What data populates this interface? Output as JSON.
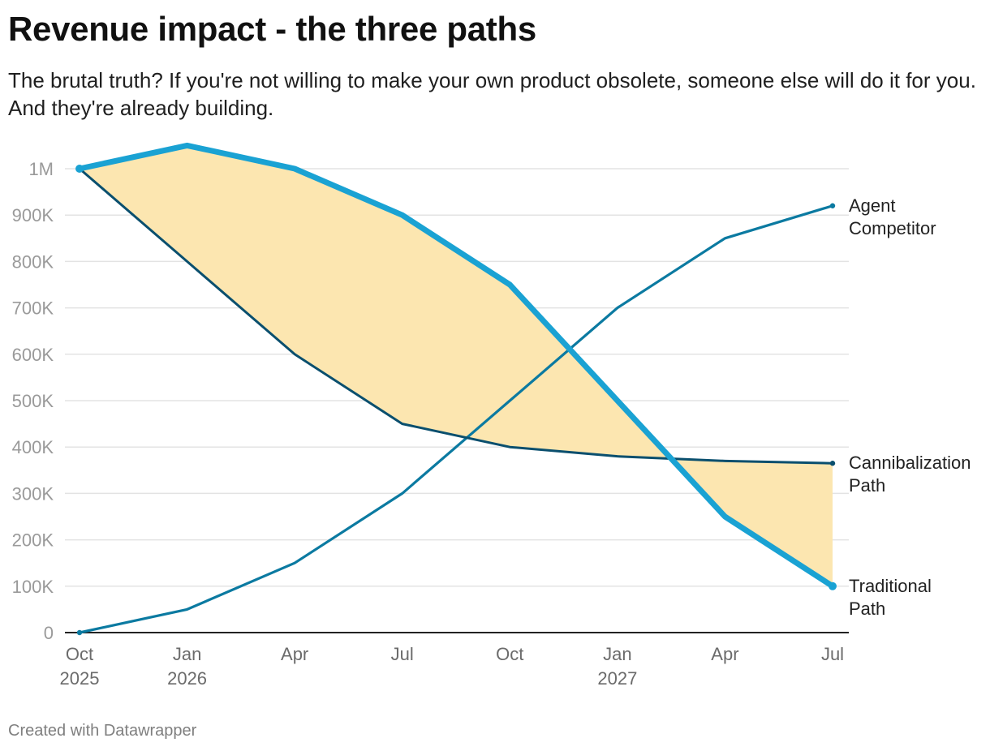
{
  "title": "Revenue impact - the three paths",
  "subtitle": "The brutal truth? If you're not willing to make your own product obsolete, someone else will do it for you. And they're already building.",
  "footer": "Created with Datawrapper",
  "chart_data": {
    "type": "line",
    "title": "Revenue impact - the three paths",
    "xlabel": "",
    "ylabel": "",
    "ylim": [
      0,
      1000000
    ],
    "y_ticks": [
      0,
      100000,
      200000,
      300000,
      400000,
      500000,
      600000,
      700000,
      800000,
      900000,
      1000000
    ],
    "y_tick_labels": [
      "0",
      "100K",
      "200K",
      "300K",
      "400K",
      "500K",
      "600K",
      "700K",
      "800K",
      "900K",
      "1M"
    ],
    "x_tick_labels": [
      {
        "line1": "Oct",
        "line2": "2025"
      },
      {
        "line1": "Jan",
        "line2": "2026"
      },
      {
        "line1": "Apr",
        "line2": ""
      },
      {
        "line1": "Jul",
        "line2": ""
      },
      {
        "line1": "Oct",
        "line2": ""
      },
      {
        "line1": "Jan",
        "line2": "2027"
      },
      {
        "line1": "Apr",
        "line2": ""
      },
      {
        "line1": "Jul",
        "line2": ""
      }
    ],
    "categories": [
      "Oct 2025",
      "Jan 2026",
      "Apr 2026",
      "Jul 2026",
      "Oct 2026",
      "Jan 2027",
      "Apr 2027",
      "Jul 2027"
    ],
    "grid": true,
    "fill_between": {
      "series_a": "Traditional Path",
      "series_b": "Cannibalization Path",
      "color": "#fce6b0"
    },
    "series": [
      {
        "name": "Traditional Path",
        "label_lines": [
          "Traditional",
          "Path"
        ],
        "color": "#1aa2d3",
        "values": [
          1000000,
          1050000,
          1000000,
          900000,
          750000,
          500000,
          250000,
          100000
        ]
      },
      {
        "name": "Cannibalization Path",
        "label_lines": [
          "Cannibalization",
          "Path"
        ],
        "color": "#0a4f6e",
        "values": [
          1000000,
          800000,
          600000,
          450000,
          400000,
          380000,
          370000,
          365000
        ]
      },
      {
        "name": "Agent Competitor",
        "label_lines": [
          "Agent",
          "Competitor"
        ],
        "color": "#0b7aa1",
        "values": [
          0,
          50000,
          150000,
          300000,
          500000,
          700000,
          850000,
          920000
        ]
      }
    ]
  }
}
